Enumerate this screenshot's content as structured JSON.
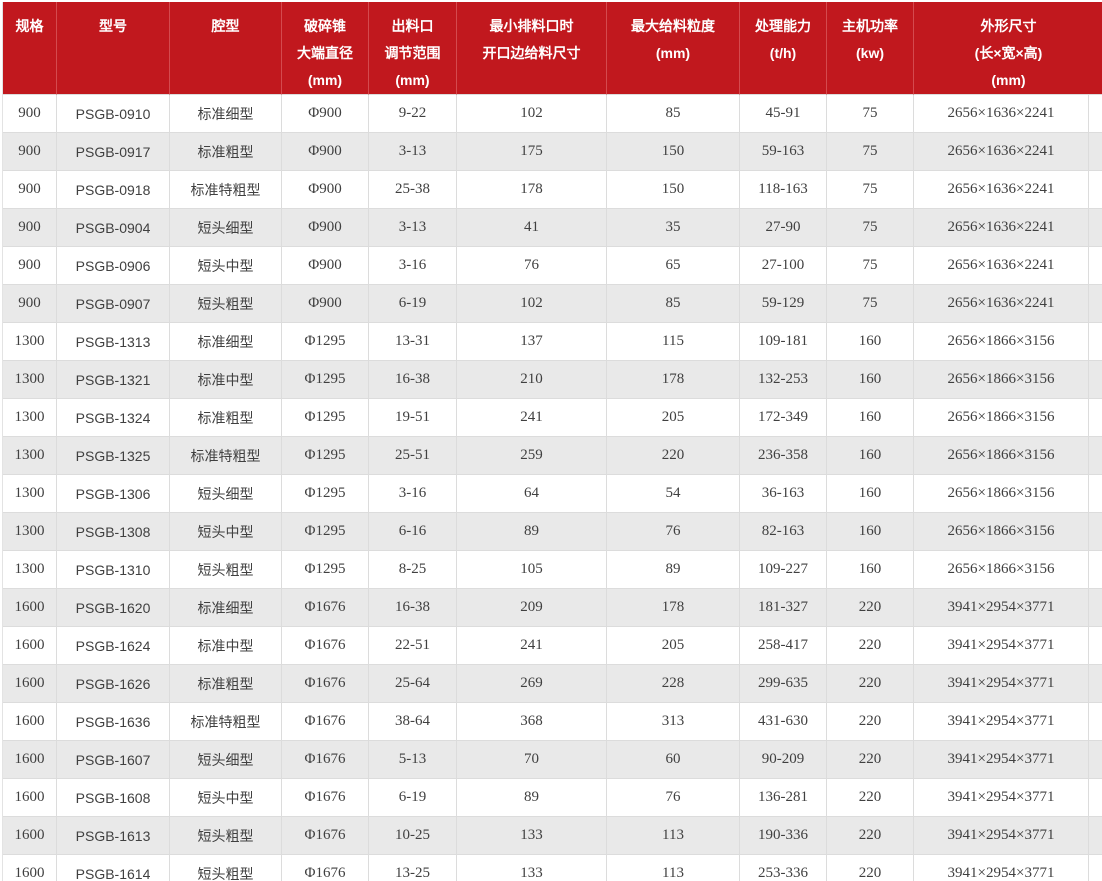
{
  "colors": {
    "header_bg": "#c1181e",
    "header_text": "#ffffff",
    "row_odd_bg": "#ffffff",
    "row_even_bg": "#e9e9e9",
    "body_text": "#404040",
    "border": "#dcdcdc"
  },
  "chart_data": {
    "type": "table",
    "title": "PSGB 圆锥破碎机技术参数表",
    "columns": [
      {
        "key": "spec",
        "label_lines": [
          "规格"
        ]
      },
      {
        "key": "model",
        "label_lines": [
          "型号"
        ]
      },
      {
        "key": "cavity",
        "label_lines": [
          "腔型"
        ]
      },
      {
        "key": "cone_diameter",
        "label_lines": [
          "破碎锥",
          "大端直径",
          "(mm)"
        ]
      },
      {
        "key": "discharge_range",
        "label_lines": [
          "出料口",
          "调节范围",
          "(mm)"
        ]
      },
      {
        "key": "feed_size_min",
        "label_lines": [
          "最小排料口时",
          "开口边给料尺寸"
        ]
      },
      {
        "key": "max_feed_size",
        "label_lines": [
          "最大给料粒度",
          "(mm)"
        ]
      },
      {
        "key": "capacity",
        "label_lines": [
          "处理能力",
          "(t/h)"
        ]
      },
      {
        "key": "motor_power",
        "label_lines": [
          "主机功率",
          "(kw)"
        ]
      },
      {
        "key": "dimensions",
        "label_lines": [
          "外形尺寸",
          "(长×宽×高)",
          "(mm)"
        ]
      }
    ],
    "rows": [
      [
        "900",
        "PSGB-0910",
        "标准细型",
        "Φ900",
        "9-22",
        "102",
        "85",
        "45-91",
        "75",
        "2656×1636×2241"
      ],
      [
        "900",
        "PSGB-0917",
        "标准粗型",
        "Φ900",
        "3-13",
        "175",
        "150",
        "59-163",
        "75",
        "2656×1636×2241"
      ],
      [
        "900",
        "PSGB-0918",
        "标准特粗型",
        "Φ900",
        "25-38",
        "178",
        "150",
        "118-163",
        "75",
        "2656×1636×2241"
      ],
      [
        "900",
        "PSGB-0904",
        "短头细型",
        "Φ900",
        "3-13",
        "41",
        "35",
        "27-90",
        "75",
        "2656×1636×2241"
      ],
      [
        "900",
        "PSGB-0906",
        "短头中型",
        "Φ900",
        "3-16",
        "76",
        "65",
        "27-100",
        "75",
        "2656×1636×2241"
      ],
      [
        "900",
        "PSGB-0907",
        "短头粗型",
        "Φ900",
        "6-19",
        "102",
        "85",
        "59-129",
        "75",
        "2656×1636×2241"
      ],
      [
        "1300",
        "PSGB-1313",
        "标准细型",
        "Φ1295",
        "13-31",
        "137",
        "115",
        "109-181",
        "160",
        "2656×1866×3156"
      ],
      [
        "1300",
        "PSGB-1321",
        "标准中型",
        "Φ1295",
        "16-38",
        "210",
        "178",
        "132-253",
        "160",
        "2656×1866×3156"
      ],
      [
        "1300",
        "PSGB-1324",
        "标准粗型",
        "Φ1295",
        "19-51",
        "241",
        "205",
        "172-349",
        "160",
        "2656×1866×3156"
      ],
      [
        "1300",
        "PSGB-1325",
        "标准特粗型",
        "Φ1295",
        "25-51",
        "259",
        "220",
        "236-358",
        "160",
        "2656×1866×3156"
      ],
      [
        "1300",
        "PSGB-1306",
        "短头细型",
        "Φ1295",
        "3-16",
        "64",
        "54",
        "36-163",
        "160",
        "2656×1866×3156"
      ],
      [
        "1300",
        "PSGB-1308",
        "短头中型",
        "Φ1295",
        "6-16",
        "89",
        "76",
        "82-163",
        "160",
        "2656×1866×3156"
      ],
      [
        "1300",
        "PSGB-1310",
        "短头粗型",
        "Φ1295",
        "8-25",
        "105",
        "89",
        "109-227",
        "160",
        "2656×1866×3156"
      ],
      [
        "1600",
        "PSGB-1620",
        "标准细型",
        "Φ1676",
        "16-38",
        "209",
        "178",
        "181-327",
        "220",
        "3941×2954×3771"
      ],
      [
        "1600",
        "PSGB-1624",
        "标准中型",
        "Φ1676",
        "22-51",
        "241",
        "205",
        "258-417",
        "220",
        "3941×2954×3771"
      ],
      [
        "1600",
        "PSGB-1626",
        "标准粗型",
        "Φ1676",
        "25-64",
        "269",
        "228",
        "299-635",
        "220",
        "3941×2954×3771"
      ],
      [
        "1600",
        "PSGB-1636",
        "标准特粗型",
        "Φ1676",
        "38-64",
        "368",
        "313",
        "431-630",
        "220",
        "3941×2954×3771"
      ],
      [
        "1600",
        "PSGB-1607",
        "短头细型",
        "Φ1676",
        "5-13",
        "70",
        "60",
        "90-209",
        "220",
        "3941×2954×3771"
      ],
      [
        "1600",
        "PSGB-1608",
        "短头中型",
        "Φ1676",
        "6-19",
        "89",
        "76",
        "136-281",
        "220",
        "3941×2954×3771"
      ],
      [
        "1600",
        "PSGB-1613",
        "短头粗型",
        "Φ1676",
        "10-25",
        "133",
        "113",
        "190-336",
        "220",
        "3941×2954×3771"
      ],
      [
        "1600",
        "PSGB-1614",
        "短头粗型",
        "Φ1676",
        "13-25",
        "133",
        "113",
        "253-336",
        "220",
        "3941×2954×3771"
      ]
    ]
  }
}
